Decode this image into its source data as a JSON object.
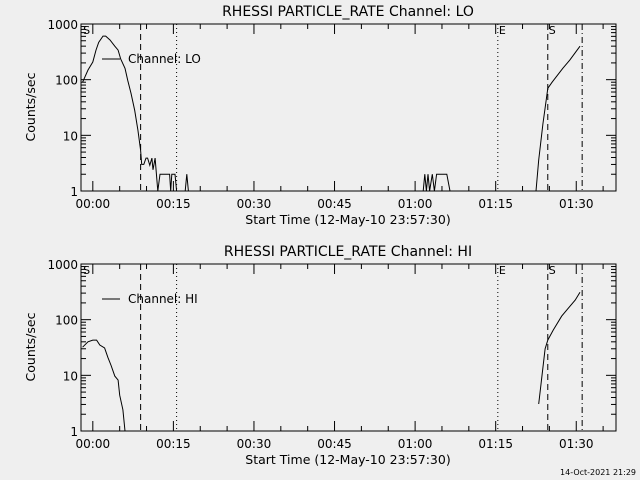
{
  "footer": {
    "timestamp": "14-Oct-2021 21:29"
  },
  "chart_data": [
    {
      "type": "line",
      "title": "RHESSI PARTICLE_RATE Channel: LO",
      "xlabel": "Start Time (12-May-10 23:57:30)",
      "ylabel": "Counts/sec",
      "yscale": "log",
      "ylim": [
        1,
        1000
      ],
      "xlim_minutes": [
        -2.2,
        97.4
      ],
      "xticks": [
        {
          "m": 0,
          "label": "00:00"
        },
        {
          "m": 15,
          "label": "00:15"
        },
        {
          "m": 30,
          "label": "00:30"
        },
        {
          "m": 45,
          "label": "00:45"
        },
        {
          "m": 60,
          "label": "01:00"
        },
        {
          "m": 75,
          "label": "01:15"
        },
        {
          "m": 90,
          "label": "01:30"
        }
      ],
      "yticks": [
        {
          "v": 1,
          "label": "1"
        },
        {
          "v": 10,
          "label": "10"
        },
        {
          "v": 100,
          "label": "100"
        },
        {
          "v": 1000,
          "label": "1000"
        }
      ],
      "legend": {
        "label": "Channel: LO",
        "placement": "top-left"
      },
      "markers": [
        {
          "m": -2.0,
          "style": "none",
          "label": "S"
        },
        {
          "m": 8.9,
          "style": "dashed",
          "label": ""
        },
        {
          "m": 15.6,
          "style": "dotted",
          "label": ""
        },
        {
          "m": 75.4,
          "style": "dotted",
          "label": "E"
        },
        {
          "m": 84.7,
          "style": "dashed",
          "label": "S"
        },
        {
          "m": 91.1,
          "style": "dashdot",
          "label": ""
        }
      ],
      "series": [
        {
          "name": "Channel: LO",
          "segments": [
            [
              [
                -1.9,
                90
              ],
              [
                -0.9,
                149
              ],
              [
                0,
                208
              ],
              [
                0.6,
                340
              ],
              [
                1.1,
                470
              ],
              [
                1.9,
                605
              ],
              [
                2.4,
                605
              ],
              [
                3.2,
                515
              ],
              [
                4.1,
                400
              ],
              [
                4.7,
                340
              ],
              [
                5.2,
                235
              ],
              [
                6.0,
                160
              ],
              [
                6.5,
                98
              ],
              [
                7.1,
                57
              ],
              [
                7.8,
                28
              ],
              [
                8.4,
                12.4
              ],
              [
                8.9,
                5.4
              ],
              [
                9.1,
                3.0
              ],
              [
                9.5,
                3.0
              ],
              [
                9.9,
                3.9
              ],
              [
                10.2,
                3.9
              ],
              [
                10.6,
                2.9
              ],
              [
                11.0,
                3.9
              ],
              [
                11.2,
                2.4
              ],
              [
                11.6,
                3.9
              ],
              [
                12.1,
                1
              ],
              [
                12.5,
                2
              ],
              [
                14.3,
                2
              ],
              [
                14.5,
                1
              ],
              [
                14.7,
                2
              ],
              [
                15.3,
                2
              ],
              [
                15.6,
                1
              ],
              [
                17.2,
                1
              ],
              [
                17.5,
                2
              ],
              [
                17.8,
                1
              ],
              [
                61.5,
                1
              ],
              [
                61.8,
                2
              ],
              [
                62.1,
                1
              ],
              [
                62.4,
                2
              ],
              [
                62.7,
                1
              ],
              [
                63.2,
                2
              ],
              [
                63.6,
                1
              ],
              [
                64.0,
                2
              ],
              [
                65.9,
                2
              ],
              [
                66.5,
                1
              ]
            ],
            [
              [
                82.5,
                1
              ],
              [
                83.0,
                3.6
              ],
              [
                83.8,
                16
              ],
              [
                84.4,
                43
              ],
              [
                84.7,
                70
              ],
              [
                85.5,
                90
              ],
              [
                87.5,
                160
              ],
              [
                88.8,
                225
              ],
              [
                90.7,
                400
              ]
            ]
          ]
        }
      ]
    },
    {
      "type": "line",
      "title": "RHESSI PARTICLE_RATE Channel: HI",
      "xlabel": "Start Time (12-May-10 23:57:30)",
      "ylabel": "Counts/sec",
      "yscale": "log",
      "ylim": [
        1,
        1000
      ],
      "xlim_minutes": [
        -2.2,
        97.4
      ],
      "xticks": [
        {
          "m": 0,
          "label": "00:00"
        },
        {
          "m": 15,
          "label": "00:15"
        },
        {
          "m": 30,
          "label": "00:30"
        },
        {
          "m": 45,
          "label": "00:45"
        },
        {
          "m": 60,
          "label": "01:00"
        },
        {
          "m": 75,
          "label": "01:15"
        },
        {
          "m": 90,
          "label": "01:30"
        }
      ],
      "yticks": [
        {
          "v": 1,
          "label": "1"
        },
        {
          "v": 10,
          "label": "10"
        },
        {
          "v": 100,
          "label": "100"
        },
        {
          "v": 1000,
          "label": "1000"
        }
      ],
      "legend": {
        "label": "Channel: HI",
        "placement": "top-left"
      },
      "markers": [
        {
          "m": -2.0,
          "style": "none",
          "label": "S"
        },
        {
          "m": 8.9,
          "style": "dashed",
          "label": ""
        },
        {
          "m": 15.6,
          "style": "dotted",
          "label": ""
        },
        {
          "m": 75.4,
          "style": "dotted",
          "label": "E"
        },
        {
          "m": 84.7,
          "style": "dashed",
          "label": "S"
        },
        {
          "m": 91.1,
          "style": "dashdot",
          "label": ""
        }
      ],
      "series": [
        {
          "name": "Channel: HI",
          "segments": [
            [
              [
                -1.9,
                32
              ],
              [
                -0.9,
                40
              ],
              [
                0,
                43
              ],
              [
                0.7,
                43
              ],
              [
                1.3,
                35
              ],
              [
                2.2,
                31
              ],
              [
                2.8,
                21
              ],
              [
                3.4,
                15
              ],
              [
                4.1,
                9.7
              ],
              [
                4.7,
                8.2
              ],
              [
                5.0,
                4.4
              ],
              [
                5.6,
                2.4
              ],
              [
                6.0,
                1
              ]
            ],
            [
              [
                83.0,
                3.05
              ],
              [
                84.2,
                30
              ],
              [
                84.7,
                43
              ],
              [
                85.7,
                65
              ],
              [
                87.3,
                116
              ],
              [
                88.5,
                160
              ],
              [
                89.8,
                225
              ],
              [
                90.7,
                310
              ]
            ]
          ]
        }
      ]
    }
  ]
}
